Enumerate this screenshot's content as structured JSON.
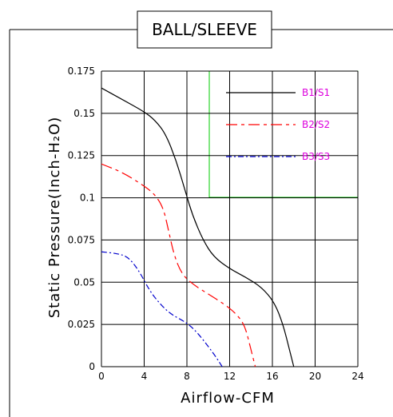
{
  "chart_data": {
    "type": "line",
    "title": "BALL/SLEEVE",
    "xlabel": "Airflow-CFM",
    "ylabel": "Static Pressure(Inch-H₂O)",
    "xlim": [
      0,
      24
    ],
    "ylim": [
      0,
      0.175
    ],
    "x_ticks": [
      0,
      4,
      8,
      12,
      16,
      20,
      24
    ],
    "y_ticks": [
      0,
      0.025,
      0.05,
      0.075,
      0.1,
      0.125,
      0.15,
      0.175
    ],
    "x_tick_labels": [
      "0",
      "4",
      "8",
      "12",
      "16",
      "20",
      "24"
    ],
    "y_tick_labels": [
      "0",
      "0.025",
      "0.05",
      "0.075",
      "0.1",
      "0.125",
      "0.15",
      "0.175"
    ],
    "grid": true,
    "legend_position": "top-right",
    "series": [
      {
        "name": "B1/S1",
        "color": "#000000",
        "dash": "solid",
        "points": [
          [
            0,
            0.165
          ],
          [
            2,
            0.158
          ],
          [
            4,
            0.151
          ],
          [
            5,
            0.146
          ],
          [
            6,
            0.138
          ],
          [
            7,
            0.122
          ],
          [
            7.8,
            0.105
          ],
          [
            8.5,
            0.09
          ],
          [
            9.5,
            0.075
          ],
          [
            10.5,
            0.065
          ],
          [
            12,
            0.058
          ],
          [
            13.5,
            0.053
          ],
          [
            15,
            0.047
          ],
          [
            16.2,
            0.038
          ],
          [
            17,
            0.025
          ],
          [
            17.6,
            0.01
          ],
          [
            18,
            0
          ]
        ]
      },
      {
        "name": "B2/S2",
        "color": "#ff0000",
        "dash": "dashdot",
        "points": [
          [
            0,
            0.12
          ],
          [
            2,
            0.115
          ],
          [
            4,
            0.107
          ],
          [
            5,
            0.102
          ],
          [
            5.8,
            0.094
          ],
          [
            6.3,
            0.08
          ],
          [
            6.8,
            0.066
          ],
          [
            7.5,
            0.055
          ],
          [
            8.5,
            0.049
          ],
          [
            10,
            0.043
          ],
          [
            11.5,
            0.037
          ],
          [
            12.5,
            0.032
          ],
          [
            13.4,
            0.025
          ],
          [
            14,
            0.01
          ],
          [
            14.4,
            0
          ]
        ]
      },
      {
        "name": "B3/S3",
        "color": "#0000cc",
        "dash": "dashdot2",
        "points": [
          [
            0,
            0.068
          ],
          [
            1.5,
            0.067
          ],
          [
            2.5,
            0.065
          ],
          [
            3.5,
            0.057
          ],
          [
            4.5,
            0.045
          ],
          [
            5.5,
            0.037
          ],
          [
            6.5,
            0.031
          ],
          [
            8,
            0.026
          ],
          [
            9,
            0.02
          ],
          [
            10,
            0.012
          ],
          [
            10.8,
            0.005
          ],
          [
            11.3,
            0
          ]
        ]
      }
    ]
  }
}
